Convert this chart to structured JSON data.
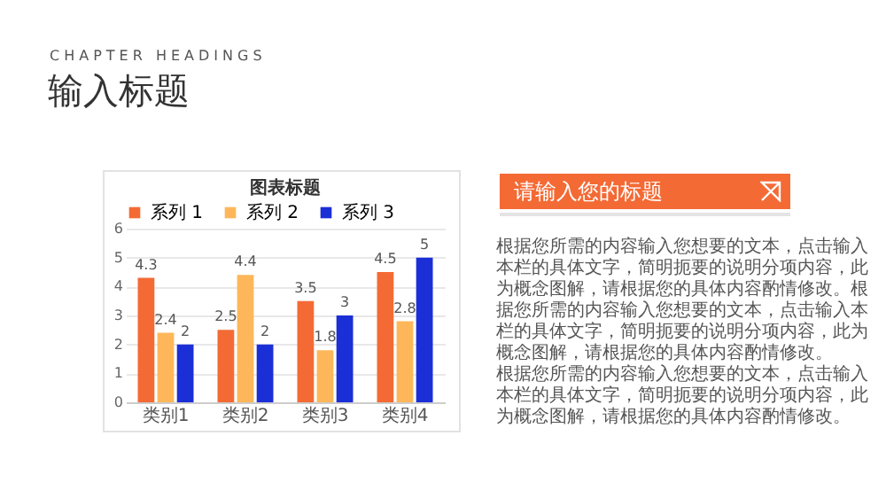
{
  "chart_data": {
    "type": "bar",
    "title": "图表标题",
    "categories": [
      "类别1",
      "类别2",
      "类别3",
      "类别4"
    ],
    "series": [
      {
        "name": "系列 1",
        "color": "#f46a35",
        "values": [
          4.3,
          2.5,
          3.5,
          4.5
        ]
      },
      {
        "name": "系列 2",
        "color": "#fdb75a",
        "values": [
          2.4,
          4.4,
          1.8,
          2.8
        ]
      },
      {
        "name": "系列 3",
        "color": "#1b2fd6",
        "values": [
          2,
          2,
          3,
          5
        ]
      }
    ],
    "ylim": [
      0,
      6
    ],
    "yticks": [
      0,
      1,
      2,
      3,
      4,
      5,
      6
    ],
    "grid": "y",
    "legend": "top",
    "data_labels": true,
    "annotations": [
      "CHAPTER HEADINGS",
      "输入标题",
      "请输入您的标题",
      "根据您所需的内容输入您想要的文本，点击输入本栏的具体文字，简明扼要的说明分项内容，此为概念图解，请根据您的具体内容酌情修改。根据您所需的内容输入您想要的文本，点击输入本栏的具体文字，简明扼要的说明分项内容，此为概念图解，请根据您的具体内容酌情修改。",
      "根据您所需的内容输入您想要的文本，点击输入本栏的具体文字，简明扼要的说明分项内容，此为概念图解，请根据您的具体内容酌情修改。"
    ]
  }
}
